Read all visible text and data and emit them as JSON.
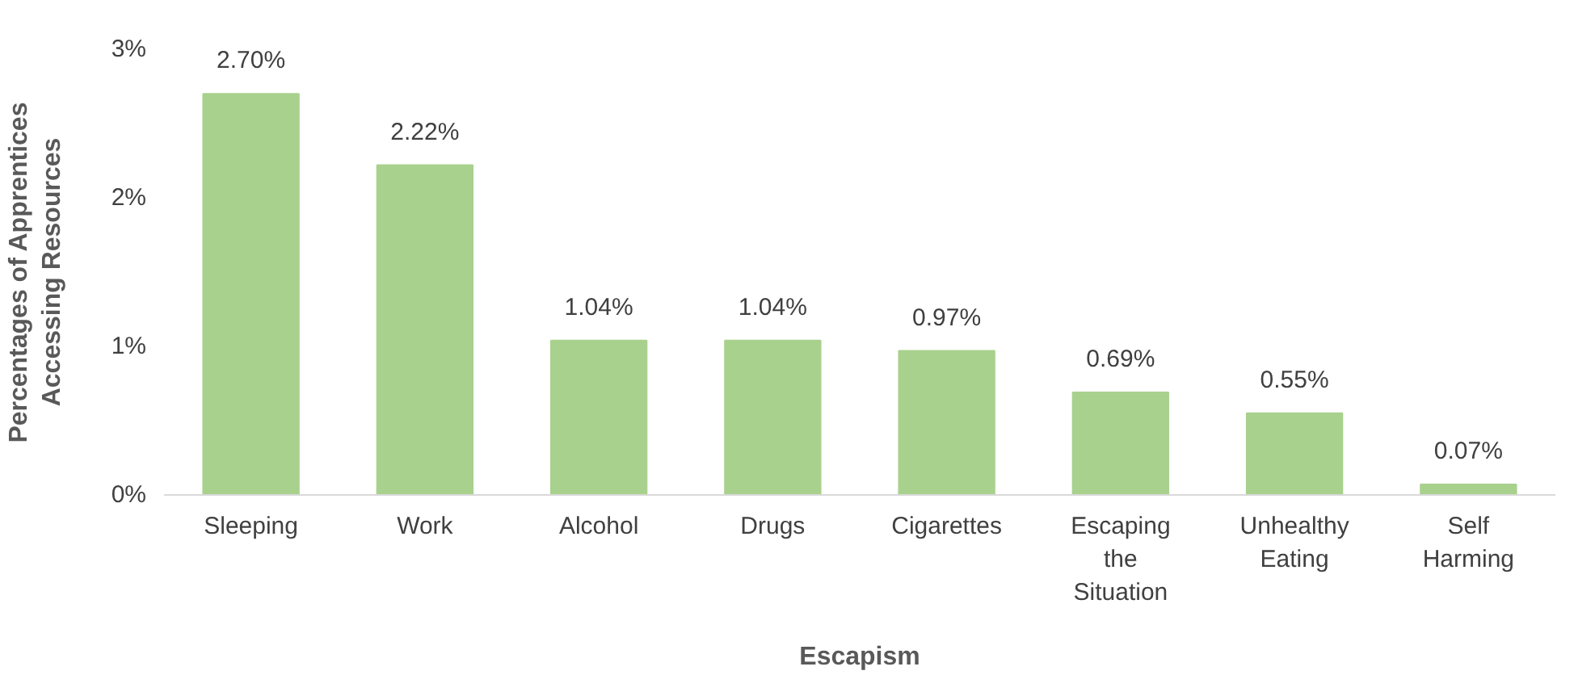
{
  "chart_data": {
    "type": "bar",
    "xlabel": "Escapism",
    "ylabel": "Percentages of Apprentices Accessing Resources",
    "categories": [
      "Sleeping",
      "Work",
      "Alcohol",
      "Drugs",
      "Cigarettes",
      "Escaping the Situation",
      "Unhealthy Eating",
      "Self Harming"
    ],
    "values": [
      2.7,
      2.22,
      1.04,
      1.04,
      0.97,
      0.69,
      0.55,
      0.07
    ],
    "value_labels": [
      "2.70%",
      "2.22%",
      "1.04%",
      "1.04%",
      "0.97%",
      "0.69%",
      "0.55%",
      "0.07%"
    ],
    "color": "#a9d18e",
    "ylim": [
      0,
      3
    ],
    "yticks": [
      {
        "value": 0,
        "label": "0%"
      },
      {
        "value": 1,
        "label": "1%"
      },
      {
        "value": 2,
        "label": "2%"
      },
      {
        "value": 3,
        "label": "3%"
      }
    ],
    "grid": false
  }
}
